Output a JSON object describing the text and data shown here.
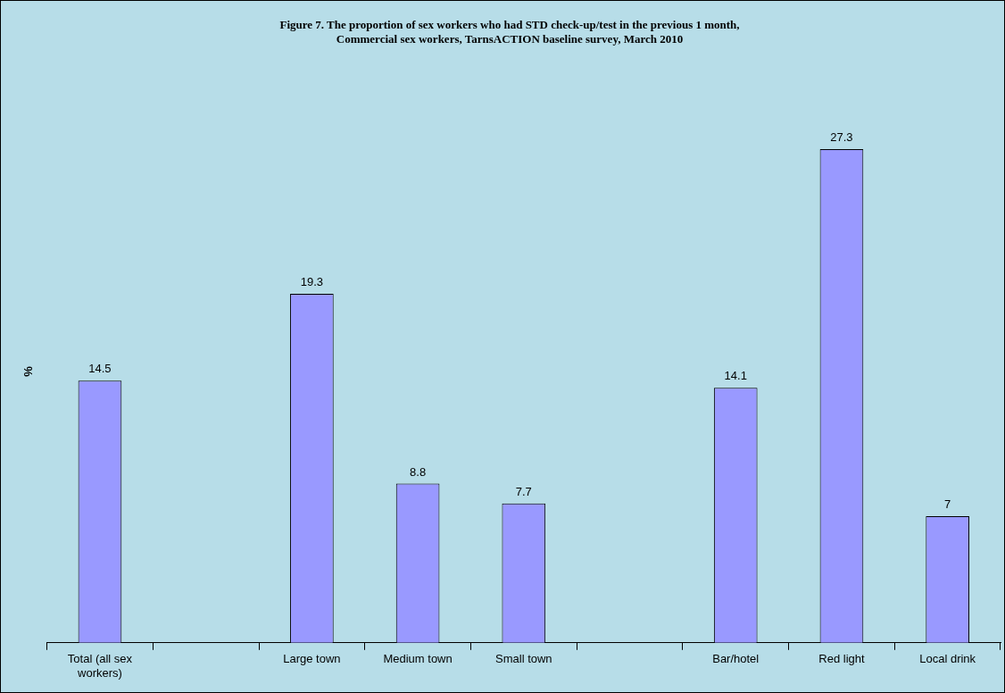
{
  "chart_data": {
    "type": "bar",
    "title": "Figure 7. The proportion of sex workers who had STD check-up/test in the previous 1 month,\nCommercial sex workers, TarnsACTION baseline survey, March 2010",
    "ylabel": "%",
    "categories": [
      "Total (all sex workers)",
      null,
      "Large town",
      "Medium town",
      "Small town",
      null,
      "Bar/hotel",
      "Red light",
      "Local drink"
    ],
    "values": [
      14.5,
      null,
      19.3,
      8.8,
      7.7,
      null,
      14.1,
      27.3,
      7
    ],
    "color": "#9999ff",
    "data_labels": true,
    "grid": false,
    "legend": false
  }
}
